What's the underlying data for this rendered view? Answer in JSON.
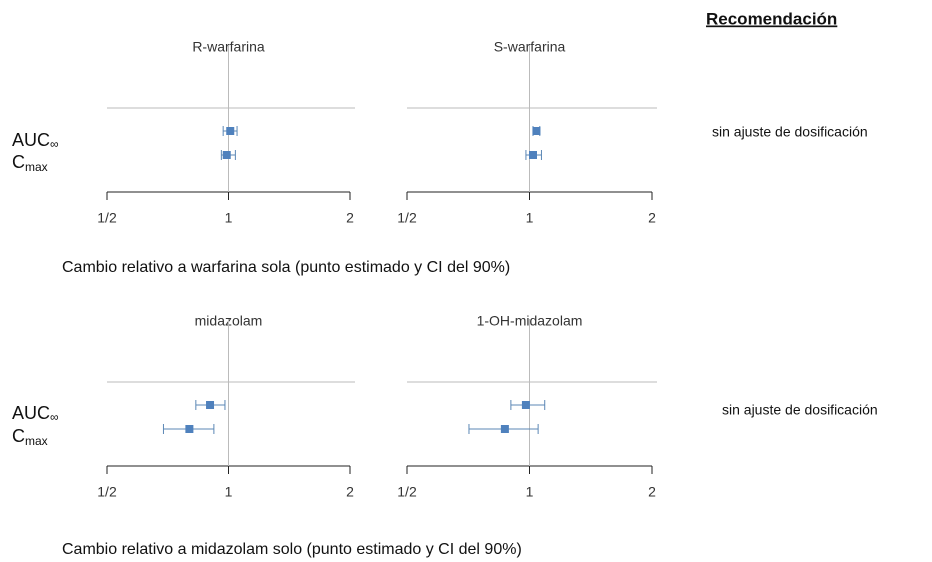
{
  "header": "Recomendación",
  "blocks": [
    {
      "row_labels": [
        {
          "main": "AUC",
          "sub": "∞"
        },
        {
          "main": "C",
          "sub": "max"
        }
      ],
      "caption": "Cambio relativo a warfarina sola (punto estimado y CI del 90%)",
      "recommendation": "sin ajuste de dosificación"
    },
    {
      "row_labels": [
        {
          "main": "AUC",
          "sub": "∞"
        },
        {
          "main": "C",
          "sub": "max"
        }
      ],
      "caption": "Cambio relativo a midazolam solo (punto estimado y CI del 90%)",
      "recommendation": "sin ajuste de dosificación"
    }
  ],
  "chart_data": [
    {
      "type": "forest",
      "title": "R-warfarina",
      "values": [
        1.01,
        0.99
      ],
      "ci_low": [
        0.97,
        0.96
      ],
      "ci_high": [
        1.05,
        1.04
      ],
      "color": "#4f81bd",
      "xlim": [
        0.5,
        2
      ],
      "log_x": true,
      "xticks": [
        {
          "value": 0.5,
          "label": "1/2"
        },
        1,
        2
      ]
    },
    {
      "type": "forest",
      "title": "S-warfarina",
      "values": [
        1.04,
        1.02
      ],
      "ci_low": [
        1.02,
        0.98
      ],
      "ci_high": [
        1.06,
        1.07
      ],
      "color": "#4f81bd",
      "xlim": [
        0.5,
        2
      ],
      "log_x": true,
      "xticks": [
        {
          "value": 0.5,
          "label": "1/2"
        },
        1,
        2
      ]
    },
    {
      "type": "forest",
      "title": "midazolam",
      "values": [
        0.9,
        0.8
      ],
      "ci_low": [
        0.83,
        0.69
      ],
      "ci_high": [
        0.98,
        0.92
      ],
      "color": "#4f81bd",
      "xlim": [
        0.5,
        2
      ],
      "log_x": true,
      "xticks": [
        {
          "value": 0.5,
          "label": "1/2"
        },
        1,
        2
      ]
    },
    {
      "type": "forest",
      "title": "1-OH-midazolam",
      "values": [
        0.98,
        0.87
      ],
      "ci_low": [
        0.9,
        0.71
      ],
      "ci_high": [
        1.09,
        1.05
      ],
      "color": "#4f81bd",
      "xlim": [
        0.5,
        2
      ],
      "log_x": true,
      "xticks": [
        {
          "value": 0.5,
          "label": "1/2"
        },
        1,
        2
      ]
    }
  ]
}
